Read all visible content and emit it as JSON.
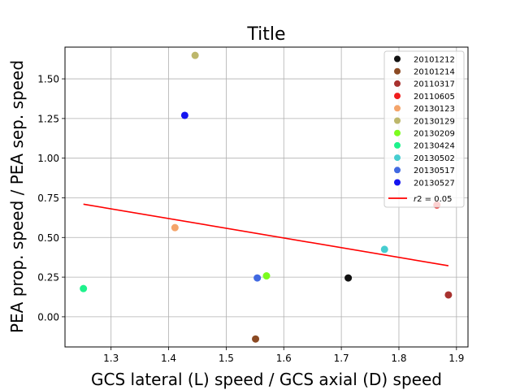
{
  "chart_data": {
    "type": "scatter",
    "title": "Title",
    "xlabel": "GCS lateral (L) speed / GCS axial (D) speed",
    "ylabel": "PEA prop. speed / PEA sep. speed",
    "xlim": [
      1.22,
      1.92
    ],
    "ylim": [
      -0.19,
      1.7
    ],
    "xticks": [
      1.3,
      1.4,
      1.5,
      1.6,
      1.7,
      1.8,
      1.9
    ],
    "xtick_labels": [
      "1.3",
      "1.4",
      "1.5",
      "1.6",
      "1.7",
      "1.8",
      "1.9"
    ],
    "yticks": [
      0.0,
      0.25,
      0.5,
      0.75,
      1.0,
      1.25,
      1.5
    ],
    "ytick_labels": [
      "0.00",
      "0.25",
      "0.50",
      "0.75",
      "1.00",
      "1.25",
      "1.50"
    ],
    "grid": true,
    "legend_position": "top-right",
    "series": [
      {
        "name": "20101212",
        "color": "#111111",
        "x": [
          1.712
        ],
        "y": [
          0.245
        ]
      },
      {
        "name": "20101214",
        "color": "#8b4a23",
        "x": [
          1.551
        ],
        "y": [
          -0.14
        ]
      },
      {
        "name": "20110317",
        "color": "#a8322f",
        "x": [
          1.886
        ],
        "y": [
          0.138
        ]
      },
      {
        "name": "20110605",
        "color": "#f01e1e",
        "x": [
          1.866
        ],
        "y": [
          0.705
        ]
      },
      {
        "name": "20130123",
        "color": "#f4a46a",
        "x": [
          1.411
        ],
        "y": [
          0.562
        ]
      },
      {
        "name": "20130129",
        "color": "#bdb76b",
        "x": [
          1.446
        ],
        "y": [
          1.648
        ]
      },
      {
        "name": "20130209",
        "color": "#7cfc1e",
        "x": [
          1.57
        ],
        "y": [
          0.258
        ]
      },
      {
        "name": "20130424",
        "color": "#1ef28c",
        "x": [
          1.252
        ],
        "y": [
          0.178
        ]
      },
      {
        "name": "20130502",
        "color": "#46cdd0",
        "x": [
          1.775
        ],
        "y": [
          0.425
        ]
      },
      {
        "name": "20130517",
        "color": "#4169e1",
        "x": [
          1.554
        ],
        "y": [
          0.245
        ]
      },
      {
        "name": "20130527",
        "color": "#1414f0",
        "x": [
          1.428
        ],
        "y": [
          1.27
        ]
      }
    ],
    "fit_line": {
      "name": "r2 = 0.05",
      "color": "#ff0000",
      "x": [
        1.252,
        1.886
      ],
      "y": [
        0.71,
        0.322
      ]
    },
    "legend_entries": [
      "20101212",
      "20101214",
      "20110317",
      "20110605",
      "20130123",
      "20130129",
      "20130209",
      "20130424",
      "20130502",
      "20130517",
      "20130527"
    ]
  }
}
